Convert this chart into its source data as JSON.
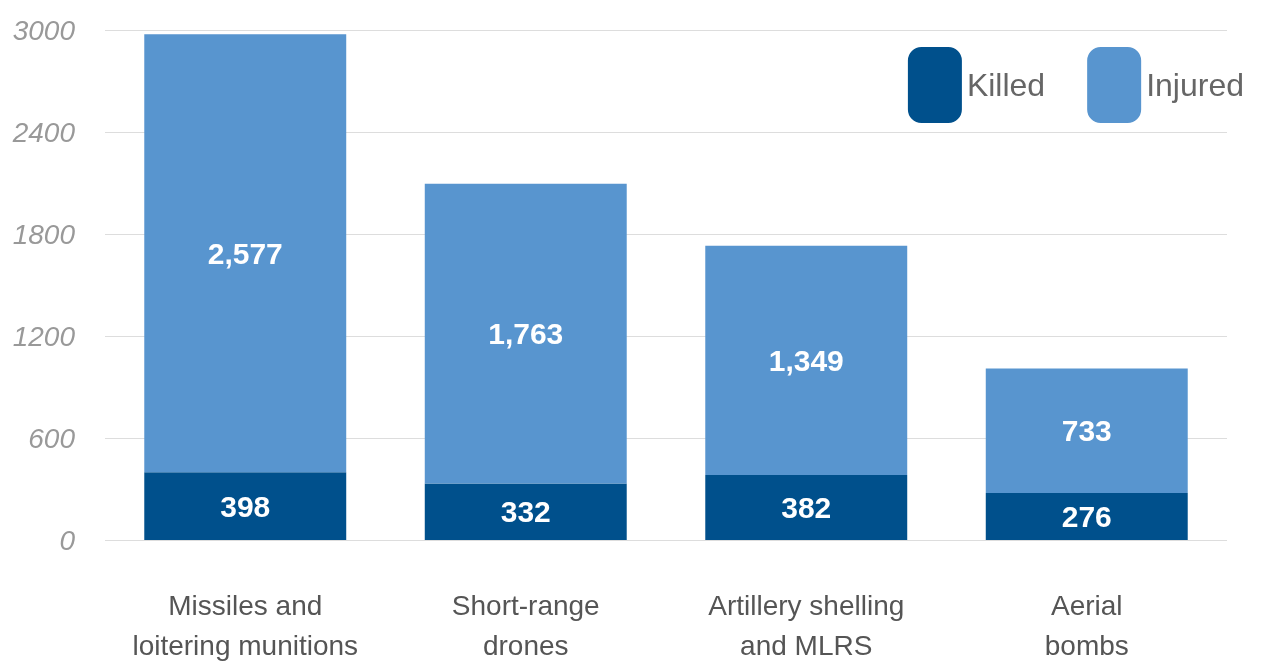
{
  "chart_data": {
    "type": "bar",
    "stacked": true,
    "categories": [
      "Missiles and\nloitering munitions",
      "Short-range\ndrones",
      "Artillery shelling\nand MLRS",
      "Aerial\nbombs"
    ],
    "series": [
      {
        "name": "Killed",
        "color": "#00508c",
        "values": [
          398,
          332,
          382,
          276
        ],
        "value_labels": [
          "398",
          "332",
          "382",
          "276"
        ]
      },
      {
        "name": "Injured",
        "color": "#5895cf",
        "values": [
          2577,
          1763,
          1349,
          733
        ],
        "value_labels": [
          "2,577",
          "1,763",
          "1,349",
          "733"
        ]
      }
    ],
    "ylim": [
      0,
      3000
    ],
    "yticks": [
      0,
      600,
      1200,
      1800,
      2400,
      3000
    ],
    "grid": "y",
    "legend": "top right"
  }
}
